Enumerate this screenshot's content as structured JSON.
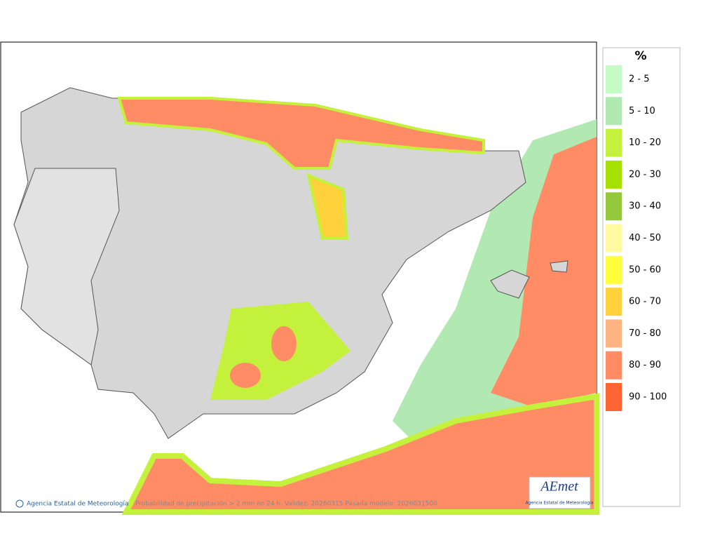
{
  "legend": {
    "title": "%",
    "items": [
      {
        "label": "2 - 5",
        "color": "#c6fbc6"
      },
      {
        "label": "5 - 10",
        "color": "#b2e8b2"
      },
      {
        "label": "10 - 20",
        "color": "#c4f23c"
      },
      {
        "label": "20 - 30",
        "color": "#a6e000"
      },
      {
        "label": "30 - 40",
        "color": "#96c83c"
      },
      {
        "label": "40 - 50",
        "color": "#fffaa0"
      },
      {
        "label": "50 - 60",
        "color": "#ffff3c"
      },
      {
        "label": "60 - 70",
        "color": "#ffd23c"
      },
      {
        "label": "70 - 80",
        "color": "#ffb482"
      },
      {
        "label": "80 - 90",
        "color": "#ff8c64"
      },
      {
        "label": "90 - 100",
        "color": "#ff6432"
      }
    ]
  },
  "footer": {
    "agency": "Agencia Estatal de Meteorología",
    "description": "Probabilidad de precipitación > 2 mm en 24 h. Validez: 20260315 Pasada modelo: 2026031500"
  },
  "logo": {
    "name": "AEmet",
    "subtitle": "Agencia Estatal de Meteorología"
  }
}
